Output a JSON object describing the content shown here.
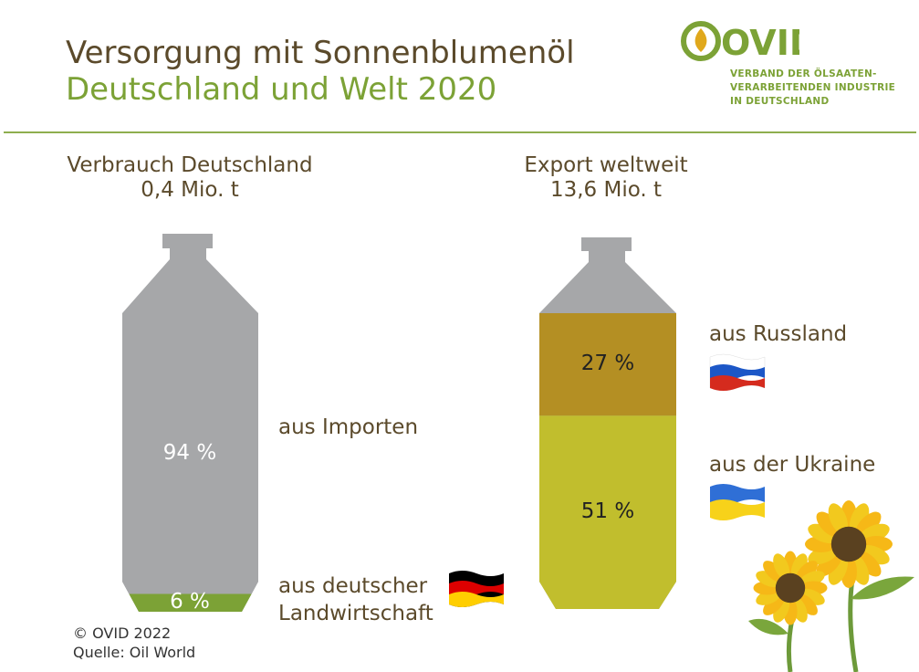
{
  "header": {
    "title": "Versorgung mit Sonnenblumenöl",
    "subtitle": "Deutschland und Welt 2020"
  },
  "logo": {
    "word": "OVID",
    "sub1": "VERBAND DER ÖLSAATEN-",
    "sub2": "VERARBEITENDEN INDUSTRIE",
    "sub3": "IN DEUTSCHLAND"
  },
  "footer": {
    "copyright": "© OVID 2022",
    "source": "Quelle: Oil World"
  },
  "chart_data": [
    {
      "type": "bar",
      "title": "Verbrauch Deutschland",
      "total": "0,4 Mio. t",
      "series": [
        {
          "name": "aus deutscher Landwirtschaft",
          "value": 6,
          "label": "6 %",
          "color": "#7ca236",
          "label_color": "#ffffff"
        },
        {
          "name": "aus Importen",
          "value": 94,
          "label": "94 %",
          "color": "#a6a7a9",
          "label_color": "#ffffff"
        }
      ],
      "flags": {
        "germany": "flag-germany-icon"
      }
    },
    {
      "type": "bar",
      "title": "Export weltweit",
      "total": "13,6 Mio. t",
      "series": [
        {
          "name": "aus der Ukraine",
          "value": 51,
          "label": "51 %",
          "color": "#c1be2d",
          "label_color": "#222222"
        },
        {
          "name": "aus Russland",
          "value": 27,
          "label": "27 %",
          "color": "#b48f23",
          "label_color": "#222222"
        },
        {
          "name": "",
          "value": 22,
          "label": "",
          "color": "#a6a7a9",
          "label_color": "#222222"
        }
      ],
      "flags": {
        "russia": "flag-russia-icon",
        "ukraine": "flag-ukraine-icon"
      }
    }
  ],
  "colors": {
    "brand_green": "#7ca236",
    "brand_brown": "#5b4a2b",
    "gray": "#a6a7a9",
    "ukraine_fill": "#c1be2d",
    "russia_fill": "#b48f23"
  }
}
